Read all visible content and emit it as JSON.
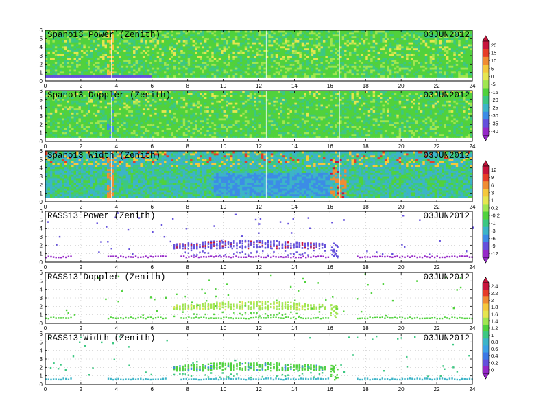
{
  "chart_data": {
    "type": "heatmap",
    "x_axis": {
      "range": [
        0,
        24
      ],
      "ticks": [
        "0",
        "2",
        "4",
        "6",
        "8",
        "10",
        "12",
        "14",
        "16",
        "18",
        "20",
        "22",
        "24"
      ]
    },
    "y_axis": {
      "range": [
        0,
        6
      ],
      "ticks": [
        "0",
        "1",
        "2",
        "3",
        "4",
        "5",
        "6"
      ]
    },
    "date": "03JUN2012",
    "panels": [
      {
        "id": "spano-power",
        "title": "Spano13 Power (Zenith)",
        "date": "03JUN2012",
        "mode": "full",
        "colorbar": 0
      },
      {
        "id": "spano-doppler",
        "title": "Spano13 Doppler (Zenith)",
        "date": "03JUN2012",
        "mode": "full",
        "colorbar": 0
      },
      {
        "id": "spano-width",
        "title": "Spano13 Width (Zenith)",
        "date": "03JUN2012",
        "mode": "full",
        "colorbar": 1
      },
      {
        "id": "rass-power",
        "title": "RASS13 Power (Zenith)",
        "date": "03JUN2012",
        "mode": "sparse",
        "colorbar": 1
      },
      {
        "id": "rass-doppler",
        "title": "RASS13 Doppler (Zenith)",
        "date": "03JUN2012",
        "mode": "sparse",
        "colorbar": 2
      },
      {
        "id": "rass-width",
        "title": "RASS13 Width (Zenith)",
        "date": "03JUN2012",
        "mode": "sparse",
        "colorbar": 2
      }
    ],
    "colorbars": [
      {
        "labels": [
          "20",
          "15",
          "10",
          "5",
          "0",
          "-5",
          "-15",
          "-20",
          "-25",
          "-30",
          "-35",
          "-40"
        ],
        "colors": [
          "#c8143c",
          "#e63c28",
          "#f08c32",
          "#f5c83c",
          "#e6e650",
          "#a0e650",
          "#50d23c",
          "#3cc882",
          "#3cb4c8",
          "#3c8ce6",
          "#6450dc",
          "#9628c8"
        ]
      },
      {
        "labels": [
          "12",
          "9",
          "6",
          "3",
          "1",
          "0.2",
          "-0.2",
          "-1",
          "-3",
          "-6",
          "-9",
          "-12"
        ],
        "colors": [
          "#c8143c",
          "#e63c28",
          "#f08c32",
          "#f5c83c",
          "#e6e650",
          "#a0e650",
          "#50d23c",
          "#3cc882",
          "#3cb4c8",
          "#3c8ce6",
          "#6450dc",
          "#9628c8"
        ]
      },
      {
        "labels": [
          "2.4",
          "2.2",
          "2",
          "1.8",
          "1.6",
          "1.4",
          "1.2",
          "1",
          "0.8",
          "0.6",
          "0.4",
          "0.2",
          "0"
        ],
        "colors": [
          "#c8143c",
          "#e63c28",
          "#f08c32",
          "#f5c83c",
          "#e6e650",
          "#a0e650",
          "#50d23c",
          "#3cc882",
          "#3cb4c8",
          "#3ca0e6",
          "#3c78e6",
          "#6450dc",
          "#9628c8"
        ]
      }
    ]
  }
}
